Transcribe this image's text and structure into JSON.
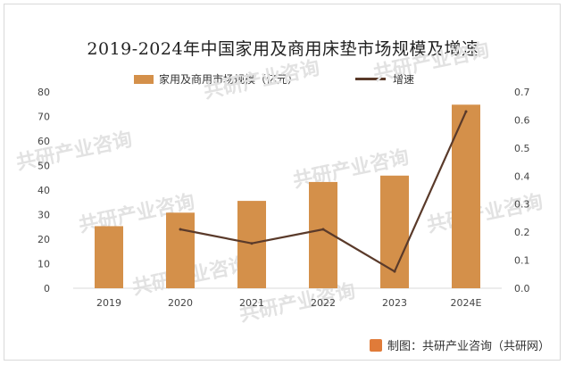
{
  "chart_data": {
    "type": "bar",
    "title": "2019-2024年中国家用及商用床垫市场规模及增速",
    "categories": [
      "2019",
      "2020",
      "2021",
      "2022",
      "2023",
      "2024E"
    ],
    "series": [
      {
        "name": "家用及商用市场规模（亿元）",
        "type": "bar",
        "axis": "left",
        "values": [
          25.3,
          30.8,
          35.6,
          43.3,
          45.9,
          74.8
        ]
      },
      {
        "name": "增速",
        "type": "line",
        "axis": "right",
        "values": [
          null,
          0.21,
          0.16,
          0.21,
          0.06,
          0.63
        ]
      }
    ],
    "y_left": {
      "min": 0,
      "max": 80,
      "ticks": [
        "0",
        "10",
        "20",
        "30",
        "40",
        "50",
        "60",
        "70",
        "80"
      ]
    },
    "y_right": {
      "min": 0,
      "max": 0.7,
      "ticks": [
        "0.0",
        "0.1",
        "0.2",
        "0.3",
        "0.4",
        "0.5",
        "0.6",
        "0.7"
      ]
    },
    "grid": false,
    "legend": "top-center",
    "colors": {
      "bar": "#d4904a",
      "line": "#5a3a2a"
    }
  },
  "watermark": {
    "text": "共研产业咨询"
  },
  "source": {
    "label": "制图：共研产业咨询（共研网）"
  }
}
